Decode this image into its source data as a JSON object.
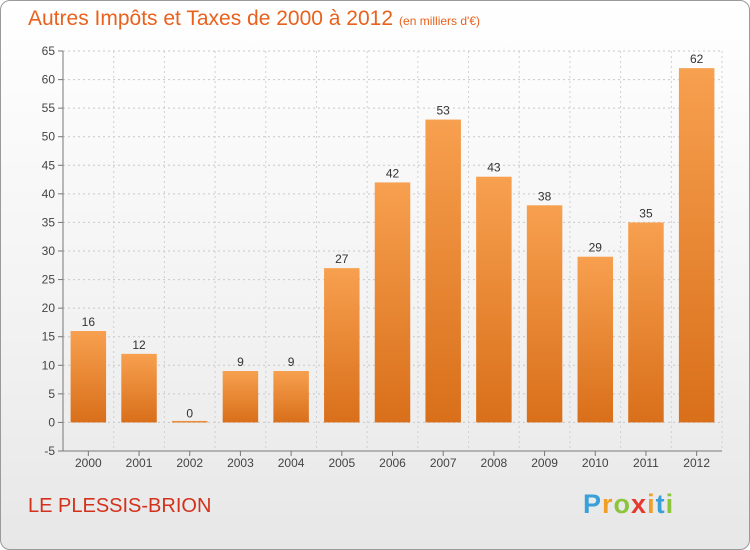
{
  "chart_data": {
    "type": "bar",
    "title": "Autres Impôts et Taxes de 2000 à 2012",
    "subtitle": "(en milliers d'€)",
    "categories": [
      "2000",
      "2001",
      "2002",
      "2003",
      "2004",
      "2005",
      "2006",
      "2007",
      "2008",
      "2009",
      "2010",
      "2011",
      "2012"
    ],
    "values": [
      16,
      12,
      0,
      9,
      9,
      27,
      42,
      53,
      43,
      38,
      29,
      35,
      62
    ],
    "ylim": [
      -5,
      65
    ],
    "yticks": [
      -5,
      0,
      5,
      10,
      15,
      20,
      25,
      30,
      35,
      40,
      45,
      50,
      55,
      60,
      65
    ],
    "grid": true,
    "bar_color": "#f0862c"
  },
  "footer": {
    "commune": "LE PLESSIS-BRION",
    "logo": {
      "p": "P",
      "r": "r",
      "o": "o",
      "x": "x",
      "i1": "i",
      "t": "t",
      "i2": "i"
    }
  }
}
